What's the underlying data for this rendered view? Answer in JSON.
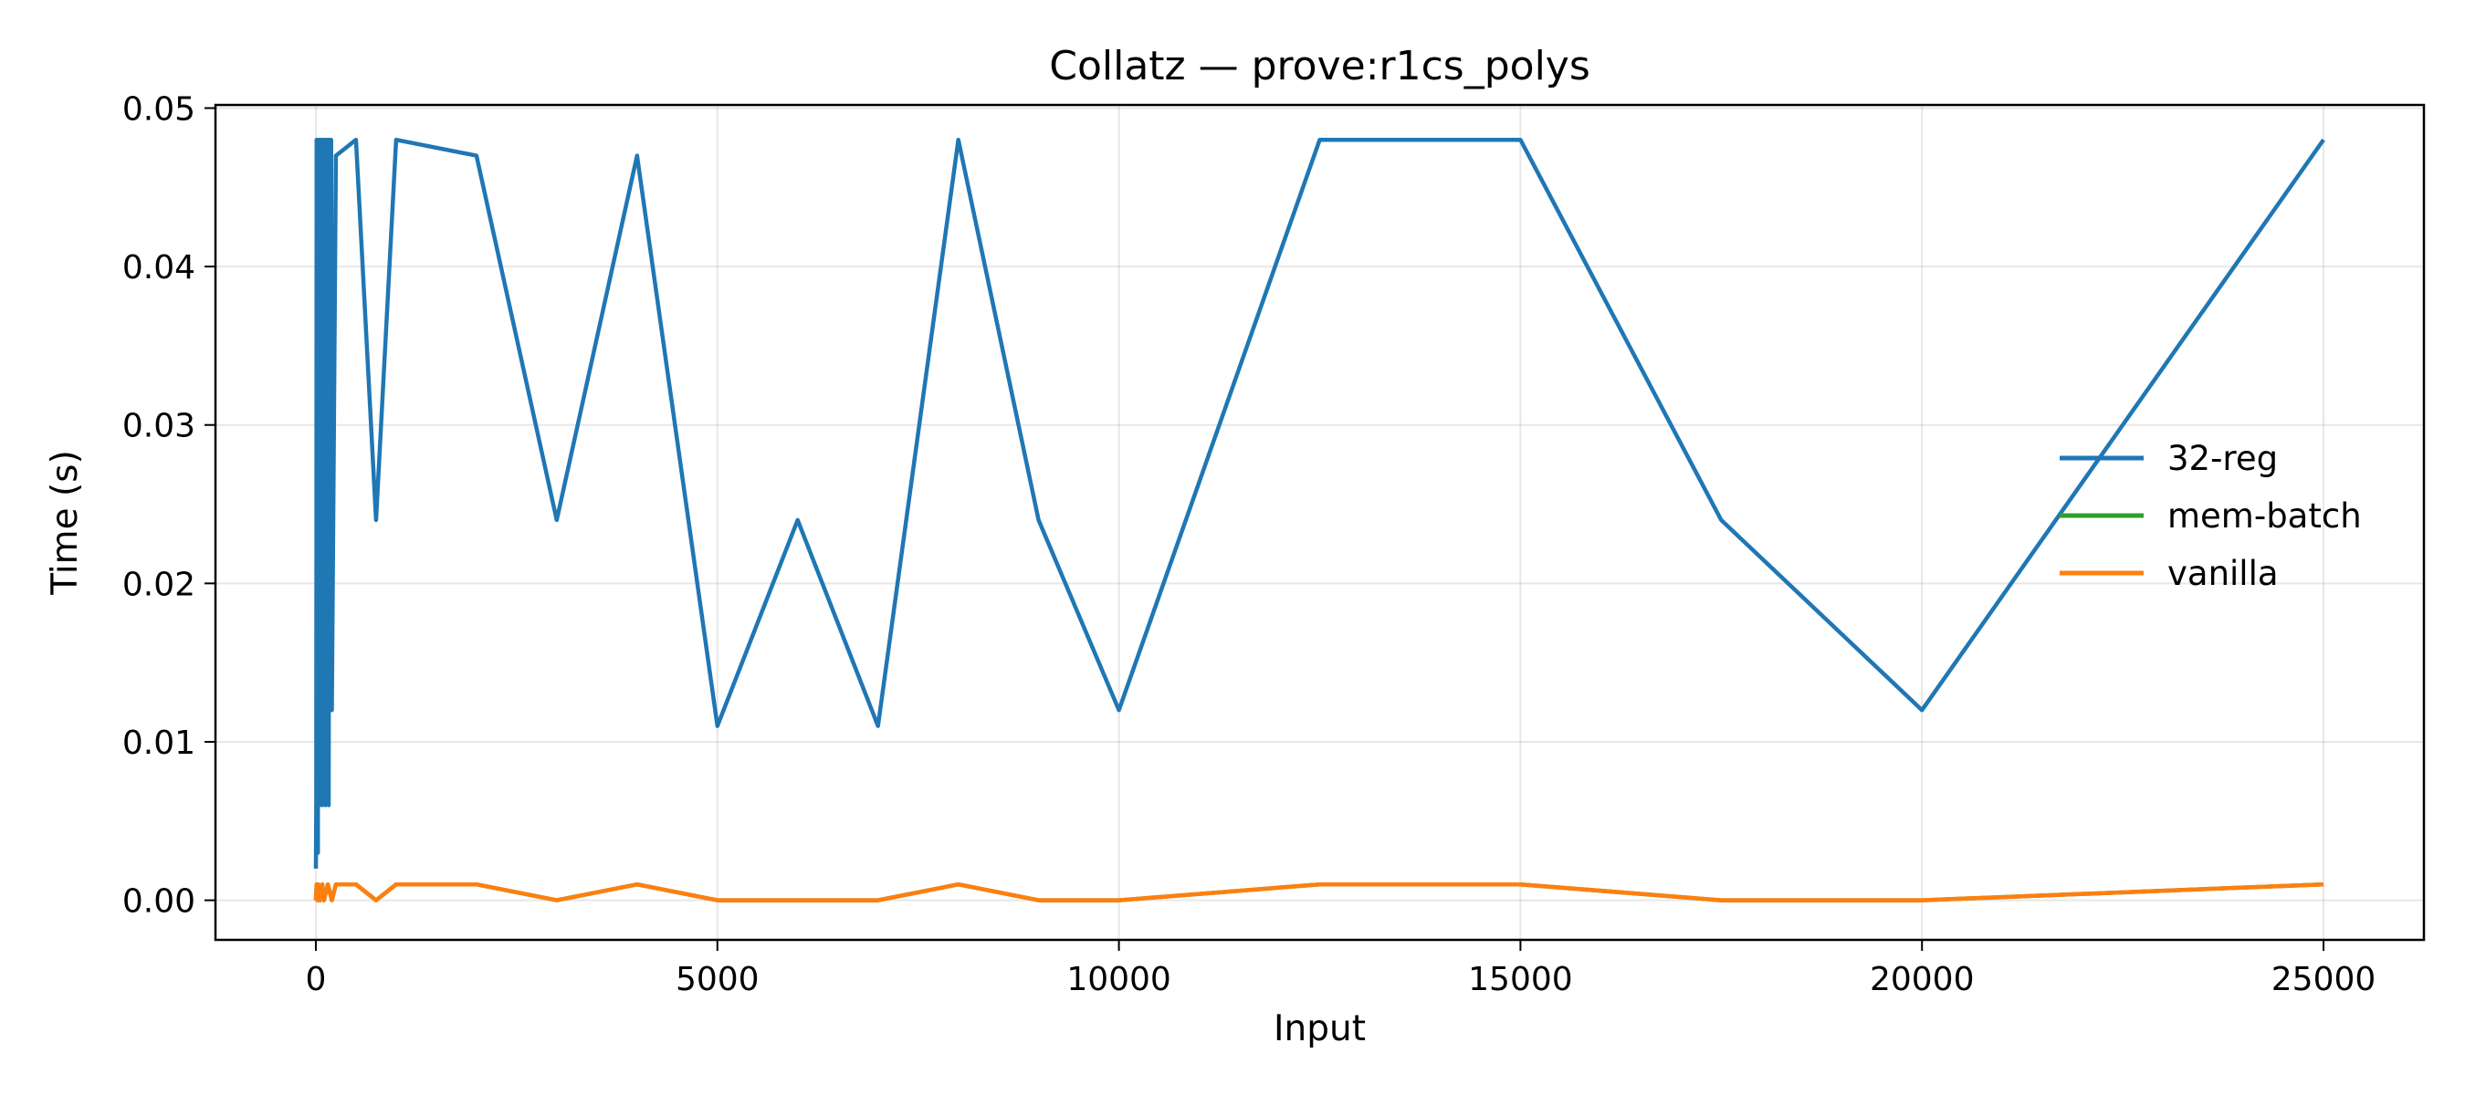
{
  "chart_data": {
    "type": "line",
    "title": "Collatz — prove:r1cs_polys",
    "xlabel": "Input",
    "ylabel": "Time (s)",
    "xlim": [
      -1250,
      26250
    ],
    "ylim": [
      -0.0025,
      0.0502
    ],
    "xticks": [
      0,
      5000,
      10000,
      15000,
      20000,
      25000
    ],
    "xtick_labels": [
      "0",
      "5000",
      "10000",
      "15000",
      "20000",
      "25000"
    ],
    "yticks": [
      0.0,
      0.01,
      0.02,
      0.03,
      0.04,
      0.05
    ],
    "ytick_labels": [
      "0.00",
      "0.01",
      "0.02",
      "0.03",
      "0.04",
      "0.05"
    ],
    "grid": true,
    "legend_position": "center-right",
    "series": [
      {
        "name": "32-reg",
        "color": "#1f77b4",
        "x": [
          1,
          5,
          10,
          15,
          20,
          25,
          30,
          35,
          40,
          45,
          50,
          60,
          70,
          80,
          90,
          100,
          110,
          120,
          130,
          140,
          150,
          160,
          170,
          180,
          190,
          200,
          250,
          500,
          750,
          1000,
          2000,
          3000,
          4000,
          5000,
          6000,
          7000,
          8000,
          9000,
          10000,
          12500,
          15000,
          17500,
          20000,
          25000
        ],
        "y": [
          0.002,
          0.006,
          0.048,
          0.004,
          0.048,
          0.003,
          0.046,
          0.008,
          0.048,
          0.006,
          0.048,
          0.01,
          0.048,
          0.006,
          0.048,
          0.01,
          0.048,
          0.006,
          0.048,
          0.007,
          0.048,
          0.006,
          0.048,
          0.012,
          0.048,
          0.012,
          0.047,
          0.048,
          0.024,
          0.048,
          0.047,
          0.024,
          0.047,
          0.011,
          0.024,
          0.011,
          0.048,
          0.024,
          0.012,
          0.048,
          0.048,
          0.024,
          0.012,
          0.048
        ]
      },
      {
        "name": "mem-batch",
        "color": "#2ca02c",
        "x": [
          1,
          10,
          20,
          30,
          50,
          80,
          100,
          150,
          200,
          250,
          500,
          750,
          1000,
          2000,
          3000,
          4000,
          5000,
          6000,
          7000,
          8000,
          9000,
          10000,
          12500,
          15000,
          17500,
          20000,
          25000
        ],
        "y": [
          0.0,
          0.001,
          0.0,
          0.001,
          0.0,
          0.001,
          0.0,
          0.001,
          0.0,
          0.001,
          0.001,
          0.0,
          0.001,
          0.001,
          0.0,
          0.001,
          0.0,
          0.0,
          0.0,
          0.001,
          0.0,
          0.0,
          0.001,
          0.001,
          0.0,
          0.0,
          0.001
        ]
      },
      {
        "name": "vanilla",
        "color": "#ff7f0e",
        "x": [
          1,
          10,
          20,
          30,
          50,
          80,
          100,
          150,
          200,
          250,
          500,
          750,
          1000,
          2000,
          3000,
          4000,
          5000,
          6000,
          7000,
          8000,
          9000,
          10000,
          12500,
          15000,
          17500,
          20000,
          25000
        ],
        "y": [
          0.0,
          0.001,
          0.0,
          0.001,
          0.0,
          0.001,
          0.0,
          0.001,
          0.0,
          0.001,
          0.001,
          0.0,
          0.001,
          0.001,
          0.0,
          0.001,
          0.0,
          0.0,
          0.0,
          0.001,
          0.0,
          0.0,
          0.001,
          0.001,
          0.0,
          0.0,
          0.001
        ]
      }
    ]
  }
}
